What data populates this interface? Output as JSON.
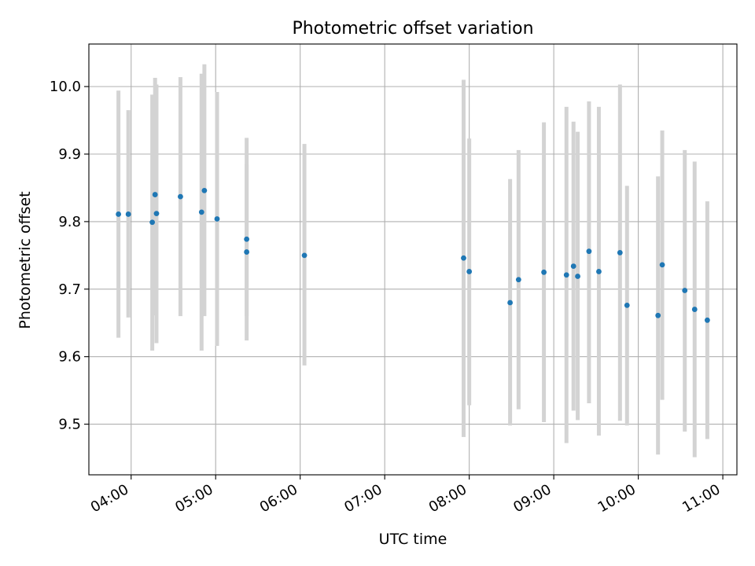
{
  "chart_data": {
    "type": "scatter",
    "title": "Photometric offset variation",
    "xlabel": "UTC time",
    "ylabel": "Photometric offset",
    "x_unit": "hours (UTC)",
    "xlim": [
      "03:30",
      "11:10"
    ],
    "ylim": [
      9.425,
      10.063
    ],
    "x_ticks": [
      "04:00",
      "05:00",
      "06:00",
      "07:00",
      "08:00",
      "09:00",
      "10:00",
      "11:00"
    ],
    "y_ticks": [
      "9.5",
      "9.6",
      "9.7",
      "9.8",
      "9.9",
      "10.0"
    ],
    "grid": true,
    "legend": "none",
    "colors": {
      "point": "#1f77b4",
      "errorbar": "#d3d3d3",
      "grid": "#b0b0b0"
    },
    "points": [
      {
        "x": "03:51",
        "y": 9.811,
        "err_low": 9.628,
        "err_high": 9.994
      },
      {
        "x": "03:58",
        "y": 9.811,
        "err_low": 9.658,
        "err_high": 9.965
      },
      {
        "x": "04:15",
        "y": 9.799,
        "err_low": 9.609,
        "err_high": 9.988
      },
      {
        "x": "04:17",
        "y": 9.84,
        "err_low": 9.661,
        "err_high": 10.013
      },
      {
        "x": "04:18",
        "y": 9.812,
        "err_low": 9.62,
        "err_high": 10.003
      },
      {
        "x": "04:35",
        "y": 9.837,
        "err_low": 9.66,
        "err_high": 10.014
      },
      {
        "x": "04:50",
        "y": 9.814,
        "err_low": 9.609,
        "err_high": 10.019
      },
      {
        "x": "04:52",
        "y": 9.846,
        "err_low": 9.66,
        "err_high": 10.033
      },
      {
        "x": "05:01",
        "y": 9.804,
        "err_low": 9.616,
        "err_high": 9.992
      },
      {
        "x": "05:22",
        "y": 9.774,
        "err_low": 9.66,
        "err_high": 9.924
      },
      {
        "x": "05:22",
        "y": 9.755,
        "err_low": 9.624,
        "err_high": 9.885
      },
      {
        "x": "06:03",
        "y": 9.75,
        "err_low": 9.587,
        "err_high": 9.915
      },
      {
        "x": "07:56",
        "y": 9.746,
        "err_low": 9.481,
        "err_high": 10.01
      },
      {
        "x": "08:00",
        "y": 9.726,
        "err_low": 9.528,
        "err_high": 9.923
      },
      {
        "x": "08:29",
        "y": 9.68,
        "err_low": 9.498,
        "err_high": 9.863
      },
      {
        "x": "08:35",
        "y": 9.714,
        "err_low": 9.522,
        "err_high": 9.906
      },
      {
        "x": "08:53",
        "y": 9.725,
        "err_low": 9.503,
        "err_high": 9.947
      },
      {
        "x": "09:09",
        "y": 9.721,
        "err_low": 9.472,
        "err_high": 9.97
      },
      {
        "x": "09:14",
        "y": 9.734,
        "err_low": 9.52,
        "err_high": 9.948
      },
      {
        "x": "09:17",
        "y": 9.719,
        "err_low": 9.506,
        "err_high": 9.933
      },
      {
        "x": "09:25",
        "y": 9.756,
        "err_low": 9.531,
        "err_high": 9.978
      },
      {
        "x": "09:32",
        "y": 9.726,
        "err_low": 9.483,
        "err_high": 9.97
      },
      {
        "x": "09:47",
        "y": 9.754,
        "err_low": 9.505,
        "err_high": 10.003
      },
      {
        "x": "09:52",
        "y": 9.676,
        "err_low": 9.498,
        "err_high": 9.853
      },
      {
        "x": "10:14",
        "y": 9.661,
        "err_low": 9.455,
        "err_high": 9.867
      },
      {
        "x": "10:17",
        "y": 9.736,
        "err_low": 9.536,
        "err_high": 9.935
      },
      {
        "x": "10:33",
        "y": 9.698,
        "err_low": 9.489,
        "err_high": 9.906
      },
      {
        "x": "10:40",
        "y": 9.67,
        "err_low": 9.451,
        "err_high": 9.889
      },
      {
        "x": "10:49",
        "y": 9.654,
        "err_low": 9.478,
        "err_high": 9.83
      }
    ]
  }
}
